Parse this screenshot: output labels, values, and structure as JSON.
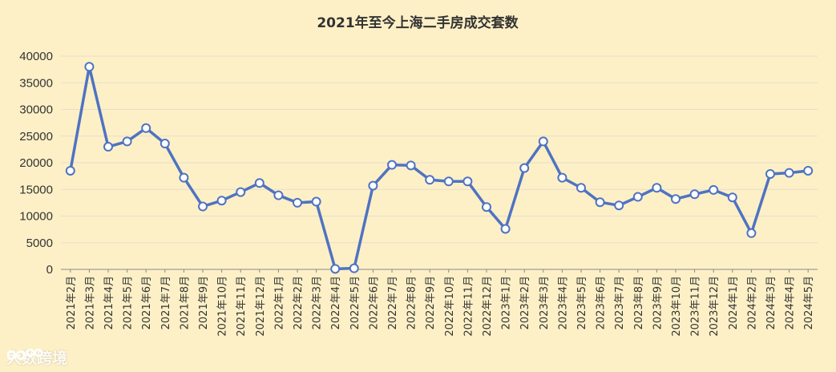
{
  "chart_data": {
    "type": "line",
    "title": "2021年至今上海二手房成交套数",
    "xlabel": "",
    "ylabel": "",
    "ylim": [
      0,
      40000
    ],
    "yticks": [
      "40000",
      "35000",
      "30000",
      "25000",
      "20000",
      "15000",
      "10000",
      "5000",
      "0"
    ],
    "grid": true,
    "categories": [
      "2021年2月",
      "2021年3月",
      "2021年4月",
      "2021年5月",
      "2021年6月",
      "2021年7月",
      "2021年8月",
      "2021年9月",
      "2021年10月",
      "2021年11月",
      "2021年12月",
      "2022年1月",
      "2022年2月",
      "2022年3月",
      "2022年4月",
      "2022年5月",
      "2022年6月",
      "2022年7月",
      "2022年8月",
      "2022年9月",
      "2022年10月",
      "2022年11月",
      "2022年12月",
      "2023年1月",
      "2023年2月",
      "2023年3月",
      "2023年4月",
      "2023年5月",
      "2023年6月",
      "2023年7月",
      "2023年8月",
      "2023年9月",
      "2023年10月",
      "2023年11月",
      "2023年12月",
      "2024年1月",
      "2024年2月",
      "2024年3月",
      "2024年4月",
      "2024年5月"
    ],
    "series": [
      {
        "values": [
          18500,
          38000,
          23000,
          24000,
          26500,
          23600,
          17200,
          11800,
          12900,
          14500,
          16200,
          13900,
          12500,
          12700,
          100,
          200,
          15700,
          19600,
          19500,
          16800,
          16500,
          16500,
          11700,
          7600,
          19000,
          24000,
          17200,
          15300,
          12600,
          12000,
          13600,
          15300,
          13200,
          14100,
          14900,
          13500,
          6800,
          17900,
          18100,
          18500
        ]
      }
    ],
    "colors": {
      "line": "#4f73c2",
      "marker_fill": "#ffffff",
      "background": "#fdf0c6"
    }
  },
  "watermark": {
    "text": "大数跨境",
    "logo_icon": "infinity-logo-icon"
  }
}
